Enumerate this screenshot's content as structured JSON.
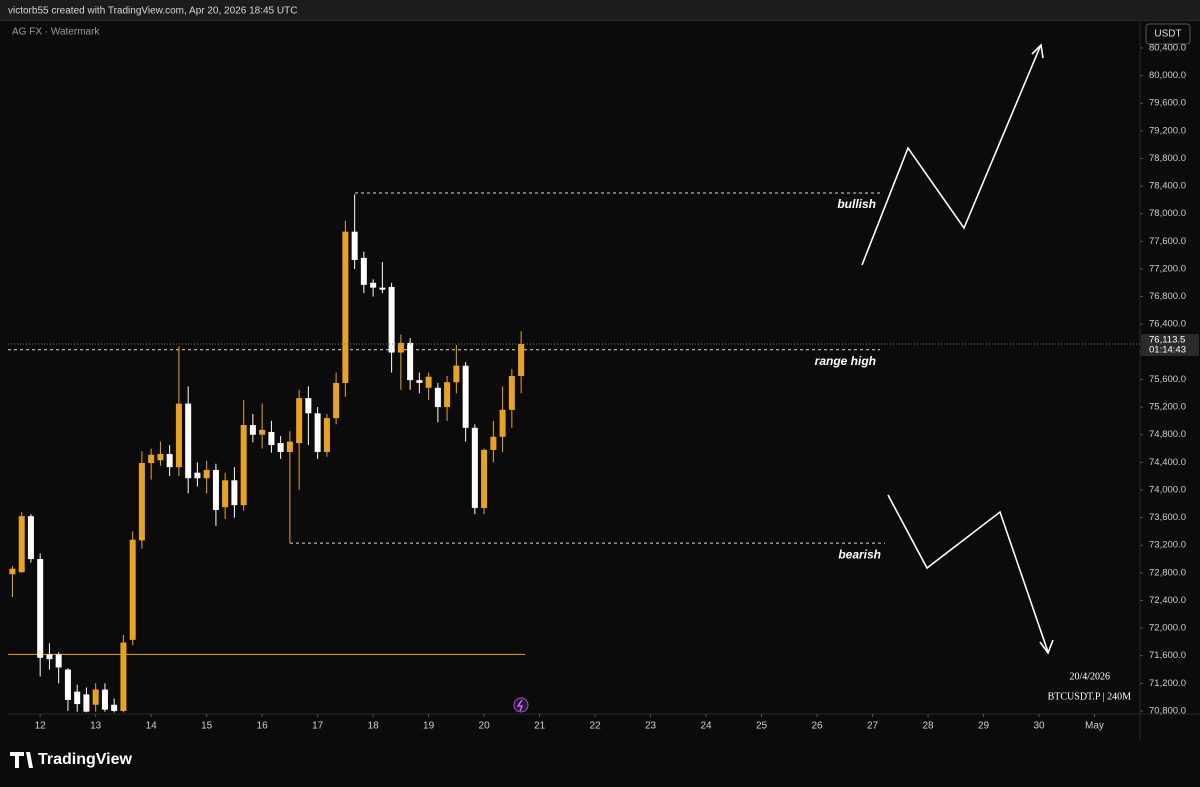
{
  "header": "victorb55 created with TradingView.com, Apr 20, 2026 18:45 UTC",
  "footer_logo": "TradingView",
  "chart_data": {
    "type": "candlestick",
    "watermark": "AG FX · Watermark",
    "currency": "USDT",
    "date": "20/4/2026",
    "symbol": "BTCUSDT.P | 240M",
    "up_color": "#e9a41f",
    "down_color": "#ffffff",
    "grid": false,
    "x": [
      11.5,
      11.667,
      11.833,
      12,
      12.167,
      12.333,
      12.5,
      12.667,
      12.833,
      13,
      13.167,
      13.333,
      13.5,
      13.667,
      13.833,
      14,
      14.167,
      14.333,
      14.5,
      14.667,
      14.833,
      15,
      15.167,
      15.333,
      15.5,
      15.667,
      15.833,
      16,
      16.167,
      16.333,
      16.5,
      16.667,
      16.833,
      17,
      17.167,
      17.333,
      17.5,
      17.667,
      17.833,
      18,
      18.167,
      18.333,
      18.5,
      18.667,
      18.833,
      19,
      19.167,
      19.333,
      19.5,
      19.667,
      19.833,
      20,
      20.167,
      20.333,
      20.5,
      20.667
    ],
    "open": [
      72780,
      72810,
      73620,
      73000,
      71620,
      71620,
      71400,
      71080,
      71040,
      70890,
      71110,
      70890,
      70800,
      71830,
      73270,
      74390,
      74430,
      74520,
      74330,
      75250,
      74250,
      74170,
      74290,
      73750,
      74140,
      73780,
      74940,
      74800,
      74840,
      74680,
      74550,
      74680,
      75330,
      75110,
      74550,
      75040,
      75550,
      77740,
      77360,
      77000,
      76930,
      76940,
      75990,
      76130,
      75590,
      75480,
      75480,
      75200,
      75560,
      75800,
      74900,
      73740,
      74580,
      74770,
      75160,
      75650
    ],
    "high": [
      72900,
      73680,
      73650,
      73080,
      71780,
      71650,
      71420,
      71180,
      71140,
      71200,
      71200,
      70980,
      71900,
      73400,
      74560,
      74600,
      74700,
      74650,
      76080,
      75500,
      74400,
      74420,
      74380,
      74250,
      74330,
      75300,
      75100,
      75250,
      75000,
      74780,
      74850,
      75450,
      75500,
      75200,
      75100,
      75700,
      77900,
      78280,
      77450,
      77050,
      77300,
      77000,
      76250,
      76200,
      75700,
      75700,
      75550,
      75650,
      76100,
      75850,
      74950,
      74600,
      75000,
      75500,
      75750,
      76300
    ],
    "low": [
      72450,
      72800,
      72950,
      71300,
      71400,
      71200,
      70800,
      70790,
      70780,
      70790,
      70790,
      70780,
      70780,
      71750,
      73150,
      74150,
      74350,
      74200,
      74200,
      73950,
      74050,
      73950,
      73480,
      73580,
      73600,
      73700,
      74690,
      74600,
      74540,
      74450,
      73230,
      74000,
      74650,
      74450,
      74480,
      74950,
      75350,
      77200,
      76850,
      76800,
      76850,
      75700,
      75450,
      75450,
      75400,
      75300,
      74980,
      75000,
      75400,
      74700,
      73650,
      73650,
      74400,
      74550,
      74900,
      75400
    ],
    "close": [
      72860,
      73620,
      73000,
      71570,
      71550,
      71430,
      70960,
      70900,
      70790,
      71110,
      70820,
      70800,
      71790,
      73280,
      74390,
      74510,
      74520,
      74330,
      75250,
      74170,
      74170,
      74290,
      73710,
      74140,
      73780,
      74940,
      74800,
      74870,
      74650,
      74550,
      74700,
      75330,
      75110,
      74550,
      75040,
      75550,
      77740,
      77330,
      76970,
      76930,
      76900,
      75990,
      76130,
      75590,
      75550,
      75640,
      75200,
      75560,
      75800,
      74900,
      73740,
      74580,
      74770,
      75160,
      75650,
      76113.5
    ],
    "last_price": {
      "value": 76113.5,
      "label": "76,113.5"
    },
    "countdown": "01:14:43",
    "levels": [
      {
        "name": "bullish",
        "value": 78300
      },
      {
        "name": "range high",
        "value": 76030
      },
      {
        "name": "bearish",
        "value": 73230
      },
      {
        "value": 71620
      }
    ],
    "xlim": [
      11.42,
      31.82
    ],
    "xticks": [
      12,
      13,
      14,
      15,
      16,
      17,
      18,
      19,
      20,
      21,
      22,
      23,
      24,
      25,
      26,
      27,
      28,
      29,
      30,
      {
        "value": 31,
        "label": "May"
      }
    ],
    "ylim": [
      70785,
      80805
    ],
    "yticks": [
      {
        "value": 70800,
        "label": "70,800.0"
      },
      {
        "value": 71200,
        "label": "71,200.0"
      },
      {
        "value": 71600,
        "label": "71,600.0"
      },
      {
        "value": 72000,
        "label": "72,000.0"
      },
      {
        "value": 72400,
        "label": "72,400.0"
      },
      {
        "value": 72800,
        "label": "72,800.0"
      },
      {
        "value": 73200,
        "label": "73,200.0"
      },
      {
        "value": 73600,
        "label": "73,600.0"
      },
      {
        "value": 74000,
        "label": "74,000.0"
      },
      {
        "value": 74400,
        "label": "74,400.0"
      },
      {
        "value": 74800,
        "label": "74,800.0"
      },
      {
        "value": 75200,
        "label": "75,200.0"
      },
      {
        "value": 75600,
        "label": "75,600.0"
      },
      {
        "value": 76000,
        "label": "76,000.0"
      },
      {
        "value": 76400,
        "label": "76,400.0"
      },
      {
        "value": 76800,
        "label": "76,800.0"
      },
      {
        "value": 77200,
        "label": "77,200.0"
      },
      {
        "value": 77600,
        "label": "77,600.0"
      },
      {
        "value": 78000,
        "label": "78,000.0"
      },
      {
        "value": 78400,
        "label": "78,400.0"
      },
      {
        "value": 78800,
        "label": "78,800.0"
      },
      {
        "value": 79200,
        "label": "79,200.0"
      },
      {
        "value": 79600,
        "label": "79,600.0"
      },
      {
        "value": 80000,
        "label": "80,000.0"
      },
      {
        "value": 80400,
        "label": "80,400.0"
      }
    ]
  }
}
